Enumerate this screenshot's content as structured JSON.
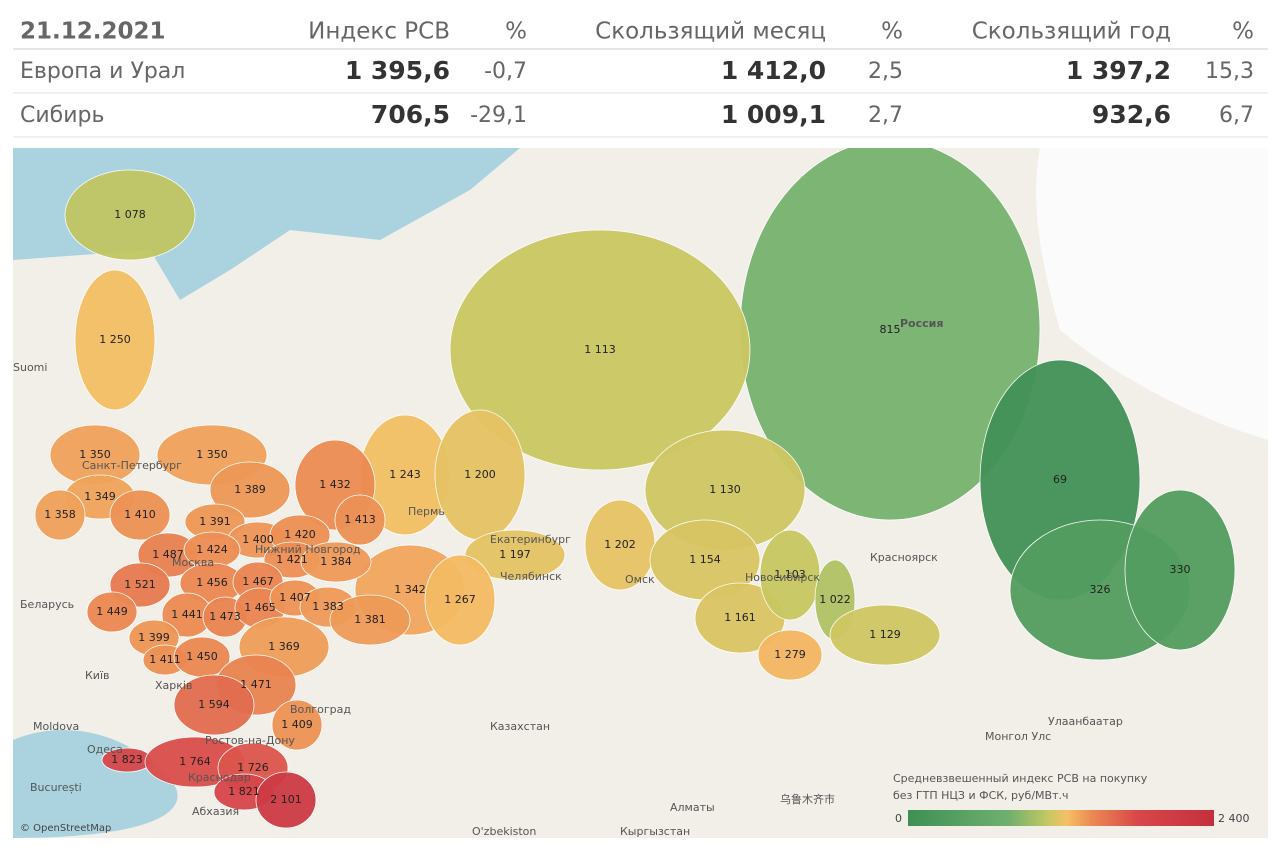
{
  "table": {
    "header": [
      "21.12.2021",
      "Индекс РСВ",
      "%",
      "Скользящий месяц",
      "%",
      "Скользящий год",
      "%"
    ],
    "rows": [
      [
        "Европа и Урал",
        "1 395,6",
        "-0,7",
        "1 412,0",
        "2,5",
        "1 397,2",
        "15,3"
      ],
      [
        "Сибирь",
        "706,5",
        "-29,1",
        "1 009,1",
        "2,7",
        "932,6",
        "6,7"
      ]
    ]
  },
  "map": {
    "regions": [
      {
        "value": 815,
        "label": "815"
      },
      {
        "value": 1113,
        "label": "1 113"
      },
      {
        "value": 69,
        "label": "69"
      },
      {
        "value": 326,
        "label": "326"
      },
      {
        "value": 330,
        "label": "330"
      },
      {
        "value": 1078,
        "label": "1 078"
      },
      {
        "value": 1250,
        "label": "1 250"
      },
      {
        "value": 1130,
        "label": "1 130"
      },
      {
        "value": 1243,
        "label": "1 243"
      },
      {
        "value": 1200,
        "label": "1 200"
      },
      {
        "value": 1202,
        "label": "1 202"
      },
      {
        "value": 1154,
        "label": "1 154"
      },
      {
        "value": 1161,
        "label": "1 161"
      },
      {
        "value": 1103,
        "label": "1 103"
      },
      {
        "value": 1022,
        "label": "1 022"
      },
      {
        "value": 1129,
        "label": "1 129"
      },
      {
        "value": 1279,
        "label": "1 279"
      },
      {
        "value": 1197,
        "label": "1 197"
      },
      {
        "value": 1342,
        "label": "1 342"
      },
      {
        "value": 1267,
        "label": "1 267"
      },
      {
        "value": 1350,
        "label": "1 350"
      },
      {
        "value": 1350,
        "label": "1 350"
      },
      {
        "value": 1349,
        "label": "1 349"
      },
      {
        "value": 1358,
        "label": "1 358"
      },
      {
        "value": 1410,
        "label": "1 410"
      },
      {
        "value": 1389,
        "label": "1 389"
      },
      {
        "value": 1432,
        "label": "1 432"
      },
      {
        "value": 1391,
        "label": "1 391"
      },
      {
        "value": 1413,
        "label": "1 413"
      },
      {
        "value": 1400,
        "label": "1 400"
      },
      {
        "value": 1420,
        "label": "1 420"
      },
      {
        "value": 1487,
        "label": "1 487"
      },
      {
        "value": 1424,
        "label": "1 424"
      },
      {
        "value": 1421,
        "label": "1 421"
      },
      {
        "value": 1384,
        "label": "1 384"
      },
      {
        "value": 1521,
        "label": "1 521"
      },
      {
        "value": 1456,
        "label": "1 456"
      },
      {
        "value": 1467,
        "label": "1 467"
      },
      {
        "value": 1449,
        "label": "1 449"
      },
      {
        "value": 1441,
        "label": "1 441"
      },
      {
        "value": 1473,
        "label": "1 473"
      },
      {
        "value": 1465,
        "label": "1 465"
      },
      {
        "value": 1407,
        "label": "1 407"
      },
      {
        "value": 1383,
        "label": "1 383"
      },
      {
        "value": 1381,
        "label": "1 381"
      },
      {
        "value": 1399,
        "label": "1 399"
      },
      {
        "value": 1411,
        "label": "1 411"
      },
      {
        "value": 1450,
        "label": "1 450"
      },
      {
        "value": 1369,
        "label": "1 369"
      },
      {
        "value": 1471,
        "label": "1 471"
      },
      {
        "value": 1594,
        "label": "1 594"
      },
      {
        "value": 1409,
        "label": "1 409"
      },
      {
        "value": 1823,
        "label": "1 823"
      },
      {
        "value": 1764,
        "label": "1 764"
      },
      {
        "value": 1726,
        "label": "1 726"
      },
      {
        "value": 1821,
        "label": "1 821"
      },
      {
        "value": 2101,
        "label": "2 101"
      }
    ],
    "places": [
      "Россия",
      "Санкт-Петербург",
      "Москва",
      "Нижний Новгород",
      "Пермь",
      "Екатеринбург",
      "Челябинск",
      "Омск",
      "Новосибирск",
      "Красноярск",
      "Ростов-на-Дону",
      "Волгоград",
      "Краснодар",
      "Харків",
      "Київ",
      "Беларусь",
      "Moldova",
      "Одеса",
      "București",
      "Абхазия",
      "Казахстан",
      "Алматы",
      "O'zbekiston",
      "Кыргызстан",
      "Монгол Улс",
      "Улаанбаатар",
      "乌鲁木齐市",
      "Suomi"
    ],
    "attribution": "© OpenStreetMap",
    "legend": {
      "title": [
        "Средневзвешенный индекс РСВ на покупку",
        "без ГТП НЦЗ и ФСК, руб/МВт.ч"
      ],
      "min": 0,
      "max": {
        "value": 2400,
        "label": "2 400"
      }
    }
  }
}
